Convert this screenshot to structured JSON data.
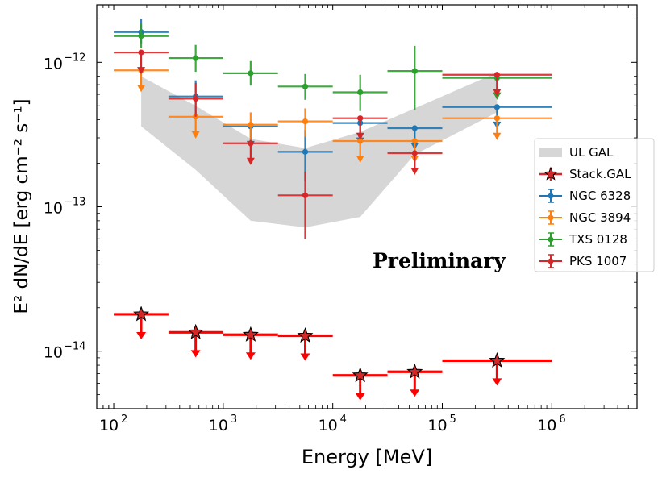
{
  "chart_data": {
    "type": "scatter",
    "xscale": "log",
    "yscale": "log",
    "xlabel": "Energy [MeV]",
    "ylabel": "E² dN/dE [erg cm⁻² s⁻¹]",
    "xlim": [
      70,
      6000000
    ],
    "ylim": [
      4e-15,
      2.5e-12
    ],
    "x_ticks": [
      {
        "exp": "2",
        "value": 100
      },
      {
        "exp": "3",
        "value": 1000
      },
      {
        "exp": "4",
        "value": 10000
      },
      {
        "exp": "5",
        "value": 100000
      },
      {
        "exp": "6",
        "value": 1000000
      }
    ],
    "y_ticks": [
      {
        "exp": "−14",
        "value": 1e-14
      },
      {
        "exp": "−13",
        "value": 1e-13
      },
      {
        "exp": "−12",
        "value": 1e-12
      }
    ],
    "tick_base": "10",
    "annotation": "Preliminary",
    "band": {
      "name": "UL GAL",
      "color": "#d6d6d6",
      "x": [
        178,
        560,
        1780,
        5600,
        17800,
        56000,
        316000
      ],
      "lower": [
        3.6e-13,
        1.8e-13,
        8e-14,
        7.2e-14,
        8.5e-14,
        2.3e-13,
        4.5e-13
      ],
      "upper": [
        8e-13,
        5e-13,
        2.95e-13,
        2.55e-13,
        3.3e-13,
        4.8e-13,
        8.5e-13
      ]
    },
    "bins": [
      [
        100,
        316
      ],
      [
        316,
        1000
      ],
      [
        1000,
        3160
      ],
      [
        3160,
        10000
      ],
      [
        10000,
        31600
      ],
      [
        31600,
        100000
      ],
      [
        100000,
        1000000
      ]
    ],
    "centers": [
      178,
      560,
      1780,
      5600,
      17800,
      56000,
      316000
    ],
    "series": [
      {
        "name": "Stack.GAL",
        "color": "#ff0000",
        "marker": "star",
        "values": [
          1.8e-14,
          1.35e-14,
          1.3e-14,
          1.28e-14,
          6.8e-15,
          7.2e-15,
          8.6e-15
        ],
        "upper_limit": [
          true,
          true,
          true,
          true,
          true,
          true,
          true
        ]
      },
      {
        "name": "NGC 6328",
        "color": "#1f77b4",
        "marker": "dot",
        "values": [
          1.62e-12,
          5.8e-13,
          3.6e-13,
          2.4e-13,
          3.8e-13,
          3.5e-13,
          4.9e-13
        ],
        "err_low": [
          1.35e-12,
          4.2e-13,
          null,
          1.5e-13,
          null,
          null,
          null
        ],
        "err_high": [
          2e-12,
          7.5e-13,
          null,
          3.4e-13,
          null,
          null,
          null
        ],
        "upper_limit": [
          false,
          false,
          true,
          false,
          true,
          true,
          true
        ]
      },
      {
        "name": "NGC 3894",
        "color": "#ff7f0e",
        "marker": "dot",
        "values": [
          8.8e-13,
          4.2e-13,
          3.7e-13,
          3.9e-13,
          2.85e-13,
          2.85e-13,
          4.1e-13
        ],
        "err_low": [
          null,
          null,
          2.9e-13,
          3.05e-13,
          null,
          null,
          null
        ],
        "err_high": [
          null,
          null,
          4.5e-13,
          4.8e-13,
          null,
          null,
          null
        ],
        "upper_limit": [
          true,
          true,
          false,
          false,
          true,
          true,
          true
        ]
      },
      {
        "name": "TXS 0128",
        "color": "#2ca02c",
        "marker": "dot",
        "values": [
          1.52e-12,
          1.07e-12,
          8.4e-13,
          6.8e-13,
          6.2e-13,
          8.7e-13,
          7.8e-13
        ],
        "err_low": [
          1.25e-12,
          8.6e-13,
          6.9e-13,
          5.5e-13,
          4.6e-13,
          4.7e-13,
          null
        ],
        "err_high": [
          1.85e-12,
          1.32e-12,
          1.02e-12,
          8.3e-13,
          8.2e-13,
          1.3e-12,
          null
        ],
        "upper_limit": [
          false,
          false,
          false,
          false,
          false,
          false,
          true
        ]
      },
      {
        "name": "PKS 1007",
        "color": "#d62728",
        "marker": "dot",
        "values": [
          1.17e-12,
          5.6e-13,
          2.75e-13,
          1.2e-13,
          4.1e-13,
          2.35e-13,
          8.2e-13
        ],
        "err_low": [
          null,
          4.2e-13,
          null,
          6e-14,
          null,
          null,
          null
        ],
        "err_high": [
          null,
          7.2e-13,
          null,
          1.75e-13,
          null,
          null,
          null
        ],
        "upper_limit": [
          true,
          false,
          true,
          false,
          true,
          true,
          true
        ]
      }
    ]
  },
  "legend": {
    "position": "center-right",
    "entries": [
      "UL GAL",
      "Stack.GAL",
      "NGC 6328",
      "NGC 3894",
      "TXS 0128",
      "PKS 1007"
    ]
  }
}
